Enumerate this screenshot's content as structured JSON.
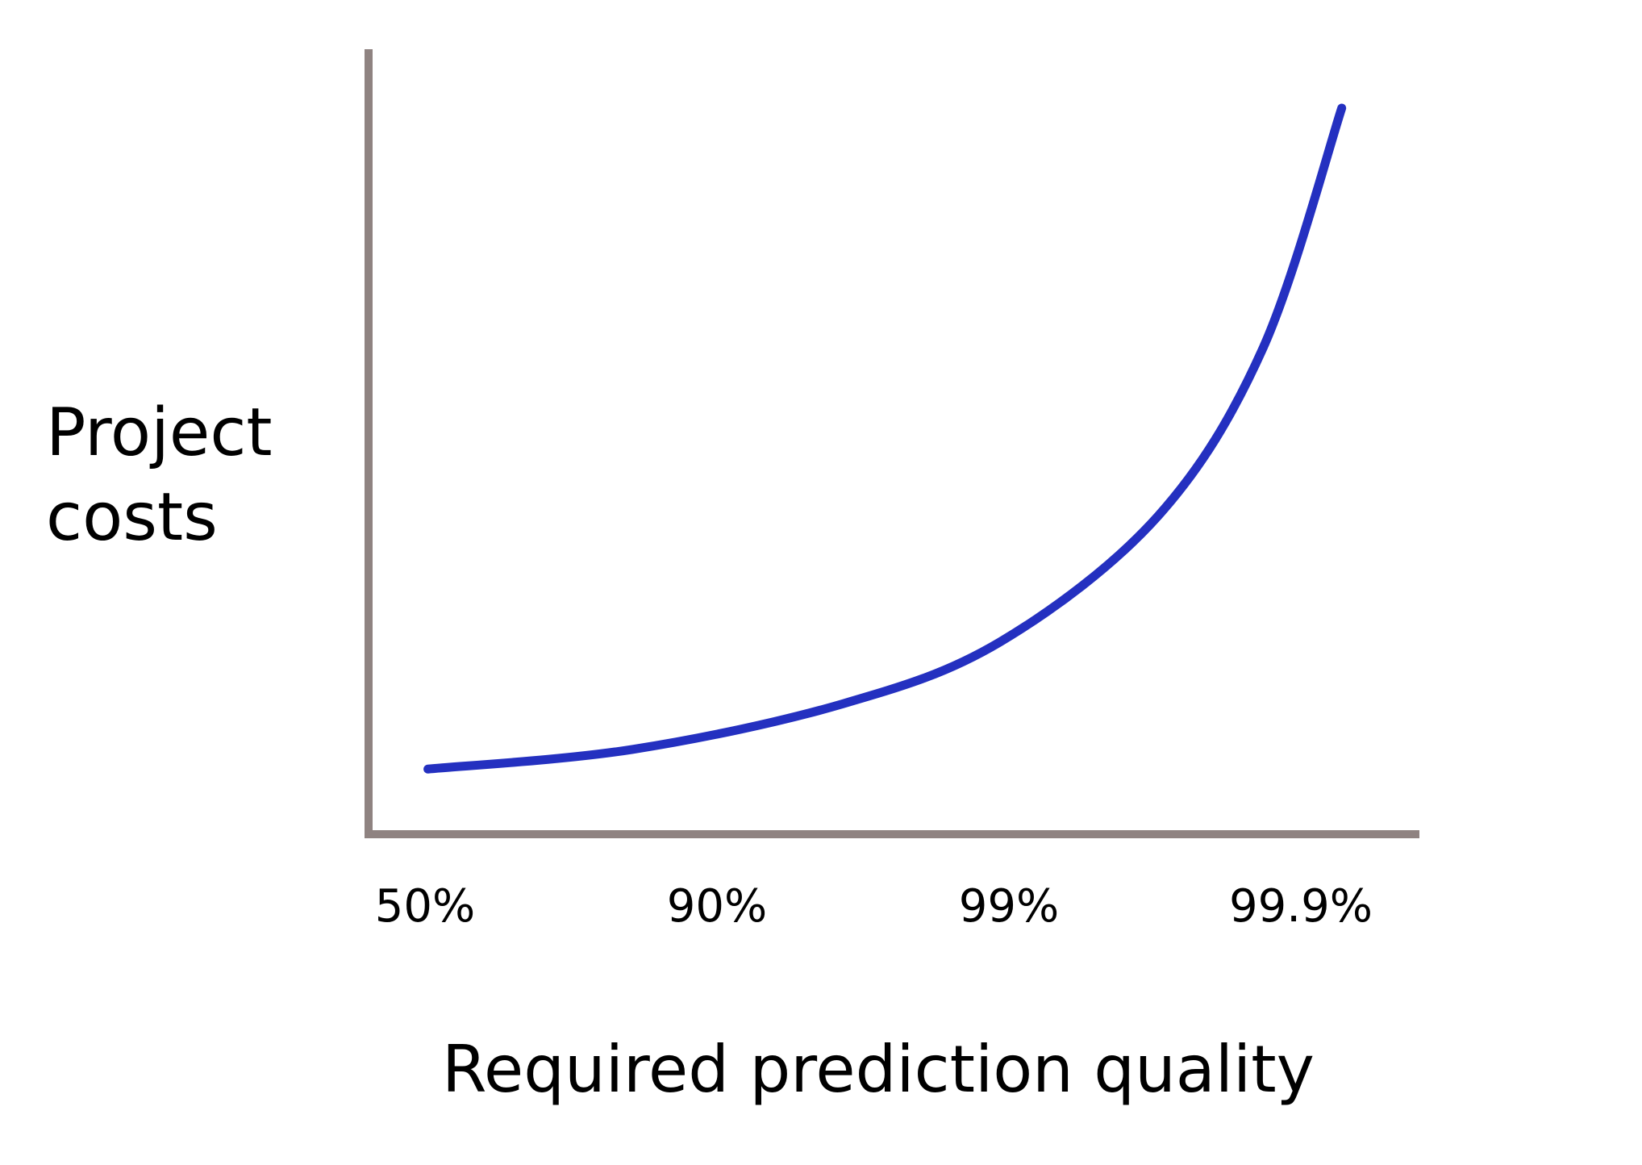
{
  "chart_data": {
    "type": "line",
    "title": "",
    "xlabel": "Required prediction quality",
    "ylabel_lines": [
      "Project",
      "costs"
    ],
    "x_tick_labels": [
      "50%",
      "90%",
      "99%",
      "99.9%"
    ],
    "y_ticks": [],
    "grid": false,
    "legend": "none",
    "series": [
      {
        "x_tick_index": [
          0.01,
          0.71,
          1.43,
          1.97,
          2.51,
          2.87,
          3.14
        ],
        "relative_cost": [
          8.3,
          10.8,
          16.6,
          24.5,
          40.5,
          61.9,
          92.5
        ]
      }
    ],
    "colors": {
      "line": "#2430c0",
      "axis": "#8f8381",
      "text": "#000000"
    }
  }
}
